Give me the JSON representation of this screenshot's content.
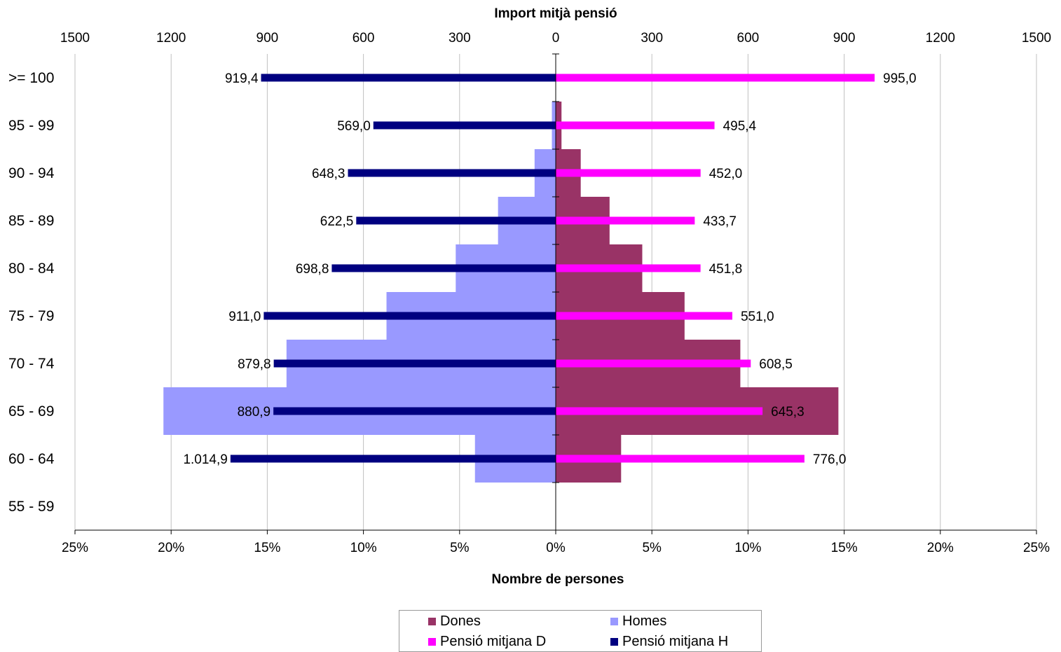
{
  "chart_data": {
    "type": "bar",
    "categories": [
      "55 - 59",
      "60 - 64",
      "65 - 69",
      "70 - 74",
      "75 - 79",
      "80 - 84",
      "85 - 89",
      "90 - 94",
      "95 - 99",
      ">= 100"
    ],
    "top_axis": {
      "title": "Import mitjà pensió",
      "range": [
        -1500,
        1500
      ],
      "ticks": [
        "1500",
        "1200",
        "900",
        "600",
        "300",
        "0",
        "300",
        "600",
        "900",
        "1200",
        "1500"
      ]
    },
    "bottom_axis": {
      "title": "Nombre de persones",
      "range": [
        -25,
        25
      ],
      "ticks": [
        "25%",
        "20%",
        "15%",
        "10%",
        "5%",
        "0%",
        "5%",
        "10%",
        "15%",
        "20%",
        "25%"
      ]
    },
    "grid": "vertical",
    "legend_position": "bottom",
    "series": [
      {
        "name": "Dones",
        "axis": "bottom",
        "color": "#993366",
        "values": [
          null,
          3.4,
          14.7,
          9.6,
          6.7,
          4.5,
          2.8,
          1.3,
          0.3,
          0.0
        ]
      },
      {
        "name": "Homes",
        "axis": "bottom",
        "color": "#9999FF",
        "values": [
          null,
          4.2,
          20.4,
          14.0,
          8.8,
          5.2,
          3.0,
          1.1,
          0.2,
          0.0
        ]
      },
      {
        "name": "Pensió mitjana D",
        "axis": "top",
        "color": "#FF00FF",
        "values": [
          null,
          776.0,
          645.3,
          608.5,
          551.0,
          451.8,
          433.7,
          452.0,
          495.4,
          995.0
        ],
        "labels": [
          null,
          "776,0",
          "645,3",
          "608,5",
          "551,0",
          "451,8",
          "433,7",
          "452,0",
          "495,4",
          "995,0"
        ]
      },
      {
        "name": "Pensió mitjana H",
        "axis": "top",
        "color": "#000080",
        "values": [
          null,
          1014.9,
          880.9,
          879.8,
          911.0,
          698.8,
          622.5,
          648.3,
          569.0,
          919.4
        ],
        "labels": [
          null,
          "1.014,9",
          "880,9",
          "879,8",
          "911,0",
          "698,8",
          "622,5",
          "648,3",
          "569,0",
          "919,4"
        ]
      }
    ]
  }
}
